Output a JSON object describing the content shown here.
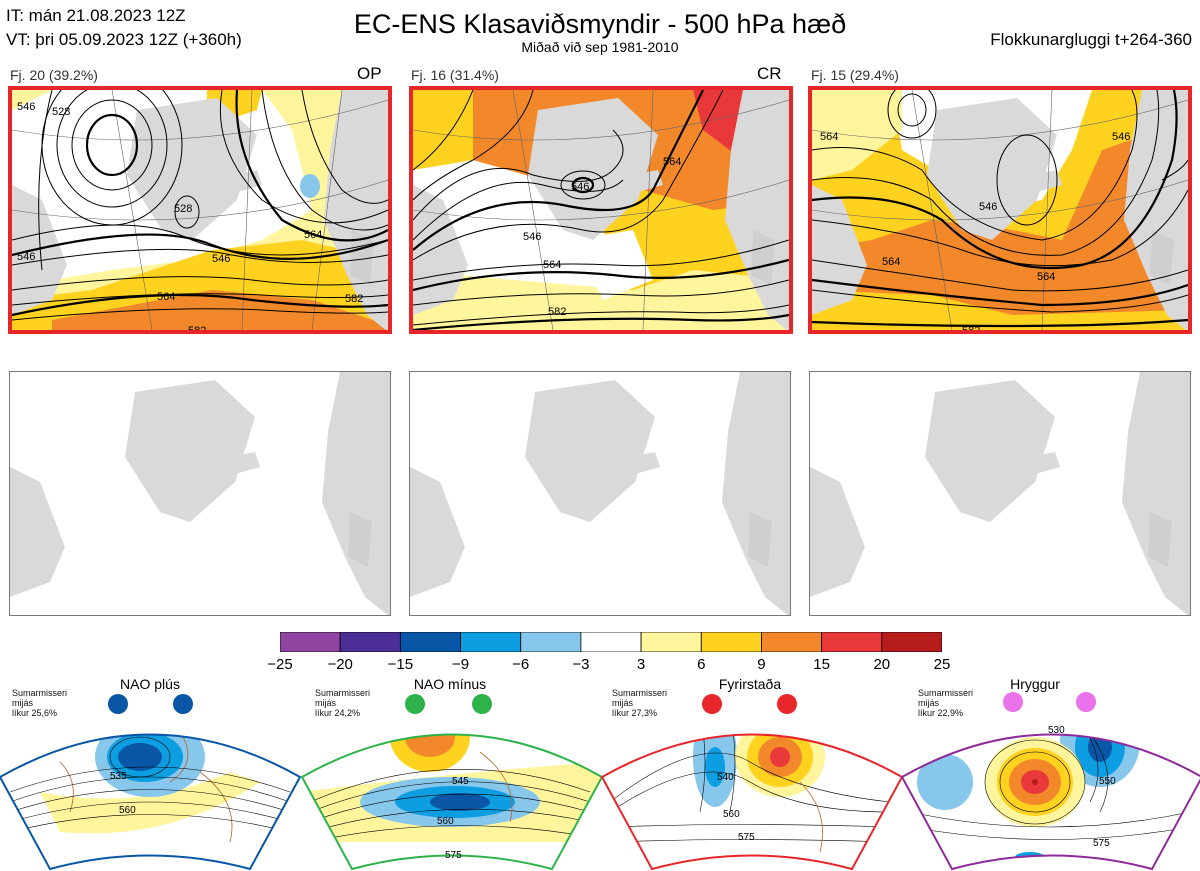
{
  "header": {
    "it": "IT: mán 21.08.2023 12Z",
    "vt": "VT: þri 05.09.2023 12Z  (+360h)",
    "title": "EC-ENS Klasaviðsmyndir - 500 hPa hæð",
    "subtitle": "Miðað við sep 1981-2010",
    "window": "Flokkunargluggi t+264-360"
  },
  "clusters": [
    {
      "label": "Fj. 20 (39.2%)",
      "tag": "OP",
      "contours": [
        "546",
        "528",
        "528",
        "546",
        "564",
        "582",
        "546",
        "564",
        "582"
      ]
    },
    {
      "label": "Fj. 16 (31.4%)",
      "tag": "CR",
      "contours": [
        "546",
        "564",
        "582",
        "564",
        "546"
      ]
    },
    {
      "label": "Fj. 15 (29.4%)",
      "tag": "",
      "contours": [
        "564",
        "546",
        "564",
        "564",
        "582",
        "546"
      ]
    }
  ],
  "colorbar": {
    "ticks": [
      "−25",
      "−20",
      "−15",
      "−9",
      "−6",
      "−3",
      "3",
      "6",
      "9",
      "15",
      "20",
      "25"
    ],
    "colors": [
      "#8e44a0",
      "#4b2e96",
      "#0a56a6",
      "#0c9ee0",
      "#88c7ec",
      "#ffffff",
      "#fff59d",
      "#ffd21f",
      "#f2882a",
      "#e8383a",
      "#b71c1c"
    ]
  },
  "regimes": [
    {
      "name": "NAO plús",
      "season": "Sumarmisseri",
      "mean": "mijás",
      "likur": "líkur 25,6%",
      "color": "#0a56a6",
      "contours": [
        "535",
        "560"
      ]
    },
    {
      "name": "NAO mínus",
      "season": "Sumarmisseri",
      "mean": "mijás",
      "likur": "líkur 24,2%",
      "color": "#2db34a",
      "contours": [
        "545",
        "560",
        "575"
      ]
    },
    {
      "name": "Fyrirstaða",
      "season": "Sumarmisseri",
      "mean": "mijás",
      "likur": "líkur 27,3%",
      "color": "#e8262a",
      "contours": [
        "540",
        "560",
        "575"
      ]
    },
    {
      "name": "Hryggur",
      "season": "Sumarmisseri",
      "mean": "mijás",
      "likur": "líkur 22,9%",
      "color": "#8e2a9a",
      "contours": [
        "530",
        "550",
        "575"
      ]
    }
  ]
}
